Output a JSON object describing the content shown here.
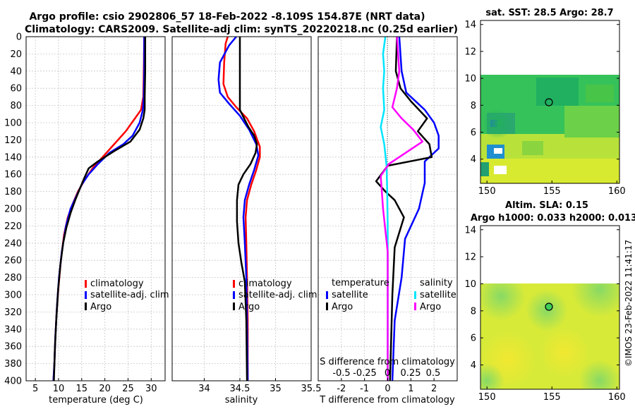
{
  "title_line1": "Argo profile: csio 2902806_57 18-Feb-2022 -8.109S 154.87E (NRT data)",
  "title_line2": "Climatology: CARS2009. Satellite-adj clim: synTS_20220218.nc (0.25d earlier)",
  "timestamp": "©IMOS 23-Feb-2022 11:41:17",
  "colors": {
    "climatology": "#ff0000",
    "satellite": "#0000ff",
    "argo": "#000000",
    "sal_satellite": "#00e5ff",
    "sal_argo": "#ff00ff",
    "grid": "#c8c8c8"
  },
  "chart_data": [
    {
      "type": "line",
      "panel": "temperature",
      "xlabel": "temperature (deg C)",
      "ylabel": "",
      "xlim": [
        3,
        33
      ],
      "ylim": [
        400,
        0
      ],
      "xticks": [
        5,
        10,
        15,
        20,
        25,
        30
      ],
      "yticks": [
        0,
        20,
        40,
        60,
        80,
        100,
        120,
        140,
        160,
        180,
        200,
        220,
        240,
        260,
        280,
        300,
        320,
        340,
        360,
        380,
        400
      ],
      "legend": [
        "climatology",
        "satellite-adj. clim",
        "Argo"
      ],
      "series": [
        {
          "name": "climatology",
          "color_key": "climatology",
          "points": [
            [
              28.5,
              0
            ],
            [
              28.4,
              40
            ],
            [
              28.3,
              70
            ],
            [
              27.8,
              85
            ],
            [
              26.5,
              95
            ],
            [
              24.5,
              110
            ],
            [
              22,
              125
            ],
            [
              19.5,
              140
            ],
            [
              17.5,
              152
            ],
            [
              15.8,
              165
            ],
            [
              14.2,
              180
            ],
            [
              13,
              195
            ],
            [
              12,
              210
            ],
            [
              11.2,
              230
            ],
            [
              10.5,
              260
            ],
            [
              10,
              290
            ],
            [
              9.6,
              320
            ],
            [
              9.3,
              350
            ],
            [
              9.1,
              380
            ],
            [
              8.9,
              400
            ]
          ]
        },
        {
          "name": "satellite-adj. clim",
          "color_key": "satellite",
          "points": [
            [
              28.5,
              0
            ],
            [
              28.5,
              40
            ],
            [
              28.4,
              70
            ],
            [
              28.2,
              85
            ],
            [
              27.5,
              100
            ],
            [
              26,
              115
            ],
            [
              24,
              125
            ],
            [
              21,
              135
            ],
            [
              18.5,
              148
            ],
            [
              16.5,
              160
            ],
            [
              15,
              172
            ],
            [
              13.8,
              186
            ],
            [
              12.6,
              200
            ],
            [
              11.6,
              220
            ],
            [
              10.7,
              250
            ],
            [
              10.1,
              280
            ],
            [
              9.7,
              310
            ],
            [
              9.3,
              350
            ],
            [
              9.1,
              380
            ],
            [
              8.9,
              400
            ]
          ]
        },
        {
          "name": "Argo",
          "color_key": "argo",
          "points": [
            [
              28.7,
              0
            ],
            [
              28.7,
              40
            ],
            [
              28.6,
              70
            ],
            [
              28.6,
              85
            ],
            [
              28.3,
              95
            ],
            [
              27.5,
              108
            ],
            [
              25.5,
              122
            ],
            [
              22,
              133
            ],
            [
              18.5,
              145
            ],
            [
              16.5,
              153
            ],
            [
              15.5,
              165
            ],
            [
              14.5,
              178
            ],
            [
              13.6,
              190
            ],
            [
              12.6,
              205
            ],
            [
              11.7,
              222
            ],
            [
              11,
              240
            ],
            [
              10.4,
              265
            ],
            [
              9.9,
              295
            ],
            [
              9.5,
              330
            ],
            [
              9.2,
              365
            ],
            [
              9,
              400
            ]
          ]
        }
      ]
    },
    {
      "type": "line",
      "panel": "salinity",
      "xlabel": "salinity",
      "xlim": [
        33.55,
        35.5
      ],
      "ylim": [
        400,
        0
      ],
      "xticks": [
        34,
        34.5,
        35,
        35.5
      ],
      "xticklabels": [
        "34",
        "34.5",
        "35",
        "35.5"
      ],
      "legend": [
        "climatology",
        "satellite-adj. clim",
        "Argo"
      ],
      "series": [
        {
          "name": "climatology",
          "color_key": "climatology",
          "points": [
            [
              34.33,
              0
            ],
            [
              34.3,
              8
            ],
            [
              34.28,
              30
            ],
            [
              34.27,
              55
            ],
            [
              34.33,
              70
            ],
            [
              34.45,
              82
            ],
            [
              34.6,
              95
            ],
            [
              34.7,
              110
            ],
            [
              34.78,
              128
            ],
            [
              34.78,
              140
            ],
            [
              34.73,
              155
            ],
            [
              34.66,
              172
            ],
            [
              34.6,
              190
            ],
            [
              34.58,
              210
            ],
            [
              34.59,
              240
            ],
            [
              34.6,
              280
            ],
            [
              34.61,
              330
            ],
            [
              34.61,
              400
            ]
          ]
        },
        {
          "name": "satellite-adj. clim",
          "color_key": "satellite",
          "points": [
            [
              34.45,
              0
            ],
            [
              34.35,
              10
            ],
            [
              34.22,
              30
            ],
            [
              34.2,
              50
            ],
            [
              34.22,
              65
            ],
            [
              34.35,
              78
            ],
            [
              34.5,
              92
            ],
            [
              34.63,
              108
            ],
            [
              34.73,
              125
            ],
            [
              34.76,
              138
            ],
            [
              34.7,
              155
            ],
            [
              34.63,
              172
            ],
            [
              34.57,
              190
            ],
            [
              34.55,
              210
            ],
            [
              34.57,
              240
            ],
            [
              34.59,
              280
            ],
            [
              34.6,
              330
            ],
            [
              34.61,
              400
            ]
          ]
        },
        {
          "name": "Argo",
          "color_key": "argo",
          "points": [
            [
              34.5,
              0
            ],
            [
              34.5,
              40
            ],
            [
              34.5,
              70
            ],
            [
              34.5,
              85
            ],
            [
              34.56,
              95
            ],
            [
              34.62,
              105
            ],
            [
              34.7,
              115
            ],
            [
              34.74,
              125
            ],
            [
              34.72,
              135
            ],
            [
              34.65,
              148
            ],
            [
              34.55,
              160
            ],
            [
              34.48,
              172
            ],
            [
              34.46,
              190
            ],
            [
              34.46,
              215
            ],
            [
              34.48,
              240
            ],
            [
              34.52,
              262
            ],
            [
              34.57,
              285
            ],
            [
              34.59,
              330
            ],
            [
              34.6,
              400
            ]
          ]
        }
      ]
    },
    {
      "type": "line",
      "panel": "differences",
      "xlabel": "T difference from climatology",
      "xlabel_top": "S difference from climatology",
      "xlim": [
        -3.0,
        3.0
      ],
      "ylim": [
        400,
        0
      ],
      "xticks": [
        -2,
        -1,
        0,
        1,
        2
      ],
      "s_tick_labels": [
        "-0.5",
        "-0.25",
        "0",
        "0.25",
        "0.5"
      ],
      "legend_left": [
        "temperature",
        "satellite",
        "Argo"
      ],
      "legend_right": [
        "salinity",
        "satellite",
        "Argo"
      ],
      "series": [
        {
          "name": "T satellite",
          "color_key": "satellite",
          "points": [
            [
              0.5,
              0
            ],
            [
              0.6,
              40
            ],
            [
              0.8,
              65
            ],
            [
              1.6,
              85
            ],
            [
              2.0,
              100
            ],
            [
              2.2,
              115
            ],
            [
              2.2,
              130
            ],
            [
              1.6,
              145
            ],
            [
              1.6,
              170
            ],
            [
              1.35,
              200
            ],
            [
              0.75,
              235
            ],
            [
              0.6,
              280
            ],
            [
              0.3,
              330
            ],
            [
              0.2,
              400
            ]
          ]
        },
        {
          "name": "T Argo",
          "color_key": "argo",
          "points": [
            [
              0.4,
              0
            ],
            [
              0.35,
              40
            ],
            [
              0.55,
              60
            ],
            [
              1.0,
              75
            ],
            [
              1.7,
              95
            ],
            [
              1.3,
              110
            ],
            [
              1.8,
              125
            ],
            [
              1.9,
              140
            ],
            [
              0,
              150
            ],
            [
              -0.5,
              168
            ],
            [
              -0.1,
              180
            ],
            [
              0.3,
              190
            ],
            [
              0.7,
              210
            ],
            [
              0.3,
              245
            ],
            [
              0.2,
              300
            ],
            [
              0.1,
              400
            ]
          ]
        },
        {
          "name": "S satellite",
          "color_key": "sal_satellite",
          "points": [
            [
              -0.1,
              0
            ],
            [
              -0.2,
              20
            ],
            [
              -0.15,
              40
            ],
            [
              -0.2,
              60
            ],
            [
              -0.15,
              85
            ],
            [
              -0.3,
              105
            ],
            [
              -0.15,
              125
            ],
            [
              -0.05,
              150
            ],
            [
              -0.02,
              180
            ],
            [
              0,
              220
            ],
            [
              0,
              300
            ],
            [
              0,
              400
            ]
          ]
        },
        {
          "name": "S Argo",
          "color_key": "sal_argo",
          "points": [
            [
              0.4,
              0
            ],
            [
              0.5,
              40
            ],
            [
              0.4,
              60
            ],
            [
              0.2,
              82
            ],
            [
              0.6,
              95
            ],
            [
              1.1,
              108
            ],
            [
              1.5,
              122
            ],
            [
              0.05,
              148
            ],
            [
              -0.3,
              162
            ],
            [
              -0.2,
              200
            ],
            [
              0,
              250
            ],
            [
              0,
              300
            ],
            [
              0,
              400
            ]
          ]
        }
      ]
    },
    {
      "type": "heatmap",
      "panel": "sst_map",
      "title": "sat. SST: 28.5 Argo: 28.7",
      "xlim": [
        149.5,
        160.2
      ],
      "ylim": [
        2.2,
        14.3
      ],
      "xticks": [
        150,
        155,
        160
      ],
      "yticks": [
        4,
        6,
        8,
        10,
        12,
        14
      ],
      "data_top": 10,
      "argo_position": [
        155,
        8.1
      ]
    },
    {
      "type": "heatmap",
      "panel": "sla_map",
      "title_line1": "Altim. SLA: 0.15",
      "title_line2": "Argo h1000: 0.033 h2000: 0.013",
      "xlim": [
        149.5,
        160.2
      ],
      "ylim": [
        2.2,
        14.3
      ],
      "xticks": [
        150,
        155,
        160
      ],
      "yticks": [
        4,
        6,
        8,
        10,
        12,
        14
      ],
      "data_top": 10,
      "argo_position": [
        155,
        8.1
      ]
    }
  ]
}
